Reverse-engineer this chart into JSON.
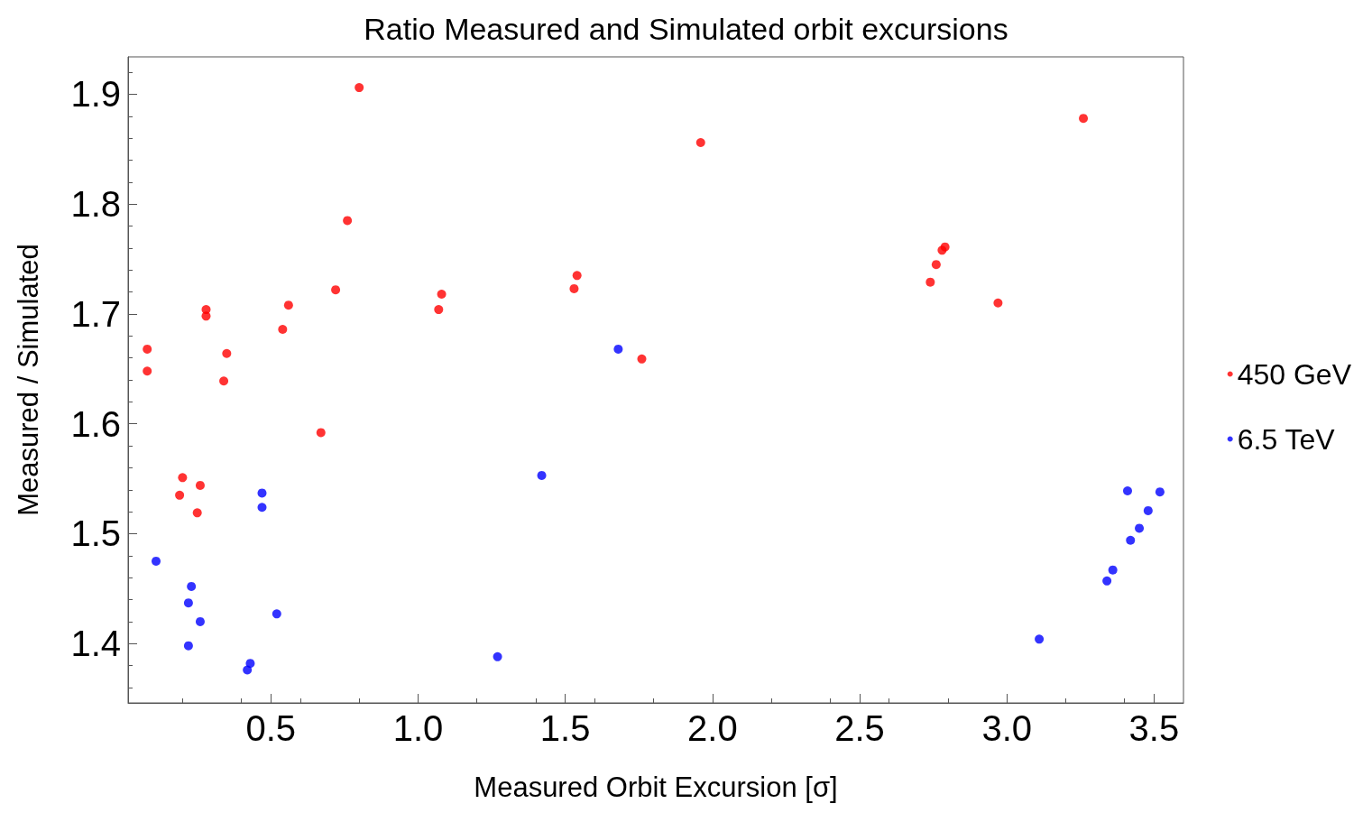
{
  "chart_data": {
    "type": "scatter",
    "title": "Ratio Measured and Simulated orbit excursions",
    "xlabel": "Measured Orbit Excursion [σ]",
    "ylabel": "Measured / Simulated",
    "xlim": [
      0.015,
      3.6
    ],
    "ylim": [
      1.346,
      1.934
    ],
    "xticks": [
      0.5,
      {
        "value": 1,
        "label": "1.0"
      },
      1.5,
      {
        "value": 2,
        "label": "2.0"
      },
      2.5,
      {
        "value": 3,
        "label": "3.0"
      },
      3.5
    ],
    "yticks": [
      1.4,
      1.5,
      1.6,
      1.7,
      1.8,
      1.9
    ],
    "grid": false,
    "legend": "right",
    "marker": "circle",
    "series": [
      {
        "name": "450 GeV",
        "color": "#ff0000",
        "x": [
          0.08,
          0.08,
          0.2,
          0.19,
          0.26,
          0.25,
          0.28,
          0.28,
          0.35,
          0.34,
          0.56,
          0.54,
          0.67,
          0.72,
          0.76,
          0.8,
          1.08,
          1.07,
          1.54,
          1.53,
          1.76,
          1.96,
          2.74,
          2.76,
          2.78,
          2.79,
          2.97,
          3.26
        ],
        "values": [
          1.668,
          1.648,
          1.551,
          1.535,
          1.544,
          1.519,
          1.704,
          1.698,
          1.664,
          1.639,
          1.708,
          1.686,
          1.592,
          1.722,
          1.785,
          1.906,
          1.718,
          1.704,
          1.735,
          1.723,
          1.659,
          1.856,
          1.729,
          1.745,
          1.758,
          1.761,
          1.71,
          1.878
        ]
      },
      {
        "name": "6.5 TeV",
        "color": "#0000ff",
        "x": [
          0.11,
          0.23,
          0.22,
          0.26,
          0.22,
          0.43,
          0.42,
          0.47,
          0.47,
          0.52,
          1.27,
          1.42,
          1.68,
          3.11,
          3.34,
          3.36,
          3.41,
          3.42,
          3.45,
          3.48,
          3.52
        ],
        "values": [
          1.475,
          1.452,
          1.437,
          1.42,
          1.398,
          1.382,
          1.376,
          1.537,
          1.524,
          1.427,
          1.388,
          1.553,
          1.668,
          1.404,
          1.457,
          1.467,
          1.539,
          1.494,
          1.505,
          1.521,
          1.538
        ]
      }
    ]
  }
}
